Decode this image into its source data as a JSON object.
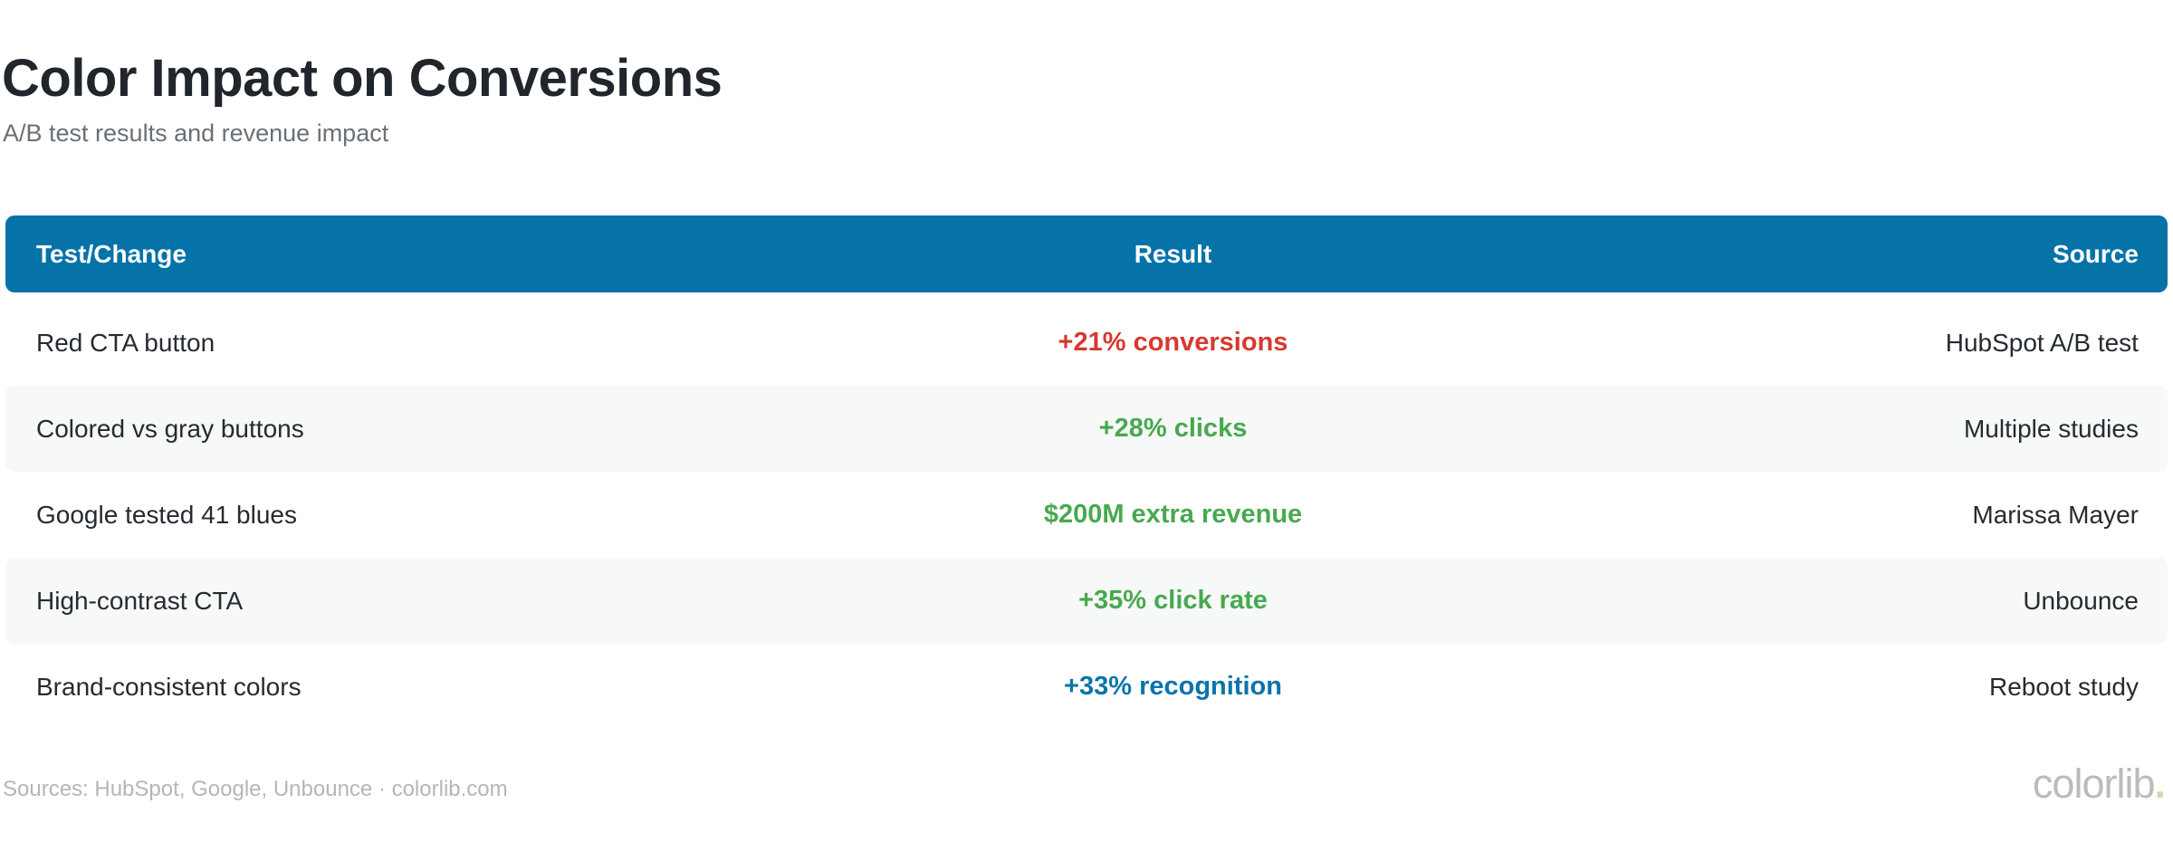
{
  "header": {
    "title": "Color Impact on Conversions",
    "subtitle": "A/B test results and revenue impact"
  },
  "table": {
    "columns": [
      "Test/Change",
      "Result",
      "Source"
    ],
    "rows": [
      {
        "test": "Red CTA button",
        "result": "+21% conversions",
        "result_color": "#d6392f",
        "source": "HubSpot A/B test"
      },
      {
        "test": "Colored vs gray buttons",
        "result": "+28% clicks",
        "result_color": "#47a94f",
        "source": "Multiple studies"
      },
      {
        "test": "Google tested 41 blues",
        "result": "$200M extra revenue",
        "result_color": "#47a94f",
        "source": "Marissa Mayer"
      },
      {
        "test": "High-contrast CTA",
        "result": "+35% click rate",
        "result_color": "#47a94f",
        "source": "Unbounce"
      },
      {
        "test": "Brand-consistent colors",
        "result": "+33% recognition",
        "result_color": "#0a74aa",
        "source": "Reboot study"
      }
    ]
  },
  "footer": {
    "sources": "Sources: HubSpot, Google, Unbounce · colorlib.com",
    "logo_text": "colorlib",
    "logo_dot": "."
  },
  "colors": {
    "header_bg": "#0673a8",
    "alt_row_bg": "#f7f8f8",
    "title_text": "#21262c",
    "subtitle_text": "#6a7076",
    "result_red": "#d6392f",
    "result_green": "#47a94f",
    "result_blue": "#0a74aa",
    "footer_text": "#b4b6b8",
    "logo_gray": "#babcba",
    "logo_dot_green": "#c3dfab"
  },
  "chart_data": {
    "type": "table",
    "title": "Color Impact on Conversions",
    "subtitle": "A/B test results and revenue impact",
    "columns": [
      "Test/Change",
      "Result",
      "Source"
    ],
    "rows": [
      [
        "Red CTA button",
        "+21% conversions",
        "HubSpot A/B test"
      ],
      [
        "Colored vs gray buttons",
        "+28% clicks",
        "Multiple studies"
      ],
      [
        "Google tested 41 blues",
        "$200M extra revenue",
        "Marissa Mayer"
      ],
      [
        "High-contrast CTA",
        "+35% click rate",
        "Unbounce"
      ],
      [
        "Brand-consistent colors",
        "+33% recognition",
        "Reboot study"
      ]
    ],
    "notes": "Result column values colored: row1 red, rows2-4 green, row5 blue"
  }
}
